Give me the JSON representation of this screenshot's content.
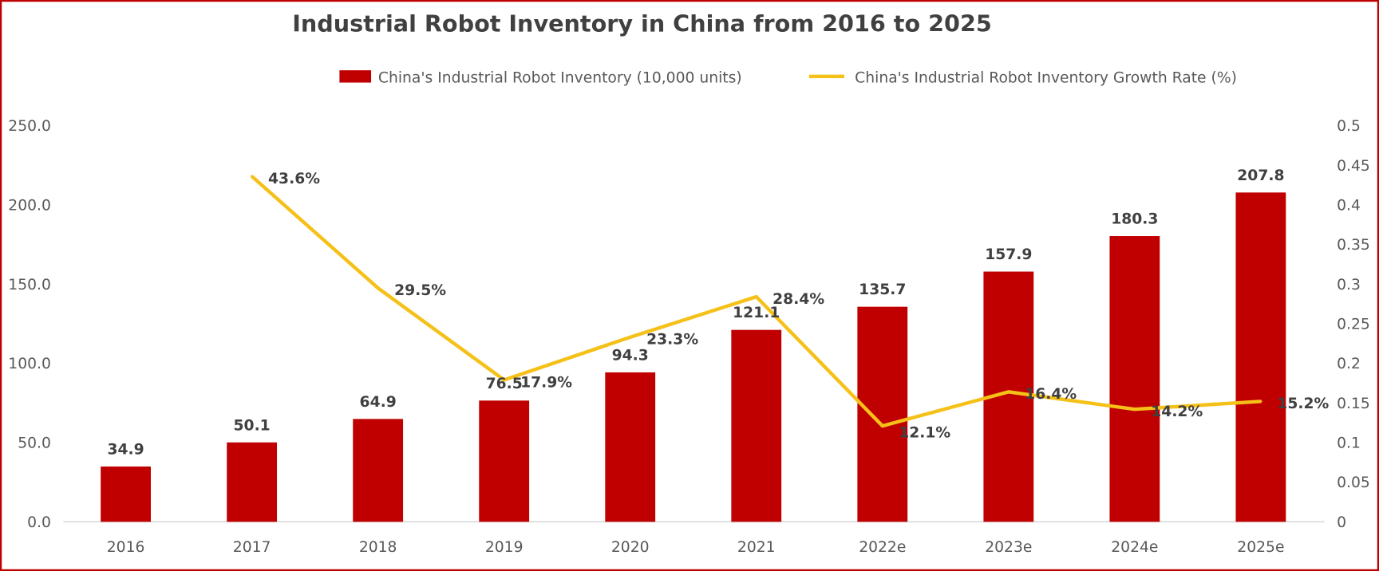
{
  "chart_data": {
    "type": "bar+line",
    "title": "Industrial Robot Inventory in China from 2016 to 2025",
    "categories": [
      "2016",
      "2017",
      "2018",
      "2019",
      "2020",
      "2021",
      "2022e",
      "2023e",
      "2024e",
      "2025e"
    ],
    "series": [
      {
        "name": "China's Industrial Robot Inventory (10,000 units)",
        "type": "bar",
        "axis": "left",
        "color": "#C00000",
        "values": [
          34.9,
          50.1,
          64.9,
          76.5,
          94.3,
          121.1,
          135.7,
          157.9,
          180.3,
          207.8
        ],
        "labels": [
          "34.9",
          "50.1",
          "64.9",
          "76.5",
          "94.3",
          "121.1",
          "135.7",
          "157.9",
          "180.3",
          "207.8"
        ]
      },
      {
        "name": "China's Industrial Robot Inventory Growth Rate (%)",
        "type": "line",
        "axis": "right",
        "color": "#F5C118",
        "values": [
          null,
          0.436,
          0.295,
          0.179,
          0.233,
          0.284,
          0.121,
          0.164,
          0.142,
          0.152
        ],
        "labels": [
          null,
          "43.6%",
          "29.5%",
          "17.9%",
          "23.3%",
          "28.4%",
          "12.1%",
          "16.4%",
          "14.2%",
          "15.2%"
        ]
      }
    ],
    "left_axis": {
      "range": [
        0,
        250
      ],
      "ticks": [
        "0.0",
        "50.0",
        "100.0",
        "150.0",
        "200.0",
        "250.0"
      ]
    },
    "right_axis": {
      "range": [
        0,
        0.5
      ],
      "ticks": [
        "0",
        "0.05",
        "0.1",
        "0.15",
        "0.2",
        "0.25",
        "0.3",
        "0.35",
        "0.4",
        "0.45",
        "0.5"
      ]
    },
    "legend_position": "top",
    "grid": false,
    "border_color": "#C00000"
  }
}
